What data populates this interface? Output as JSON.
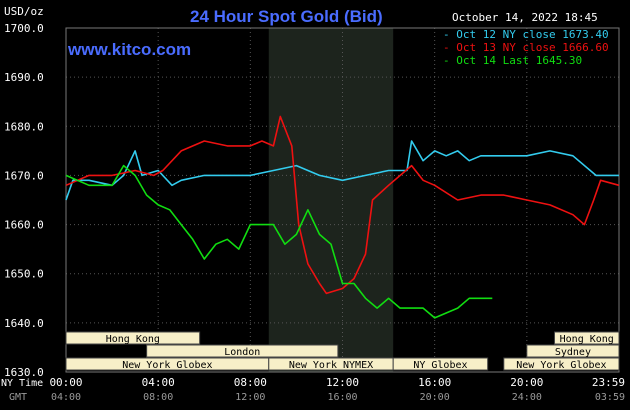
{
  "chart_data": {
    "type": "line",
    "title": "24 Hour Spot Gold (Bid)",
    "watermark": "www.kitco.com",
    "timestamp": "October 14, 2022 18:45",
    "yunit": "USD/oz",
    "ylim": [
      1630,
      1700
    ],
    "yticks": [
      "1700.0",
      "1690.0",
      "1680.0",
      "1670.0",
      "1660.0",
      "1650.0",
      "1640.0",
      "1630.0"
    ],
    "time_row_labels": [
      "NY Time",
      "GMT"
    ],
    "x_ny_ticks": [
      "00:00",
      "04:00",
      "08:00",
      "12:00",
      "16:00",
      "20:00",
      "23:59"
    ],
    "x_gmt_ticks": [
      "04:00",
      "08:00",
      "12:00",
      "16:00",
      "20:00",
      "24:00",
      "03:59"
    ],
    "legend": [
      {
        "label": "Oct 12 NY close 1673.40",
        "color": "#33ccee"
      },
      {
        "label": "Oct 13 NY close 1666.60",
        "color": "#ee1111"
      },
      {
        "label": "Oct 14 Last 1645.30",
        "color": "#11dd11"
      }
    ],
    "series": [
      {
        "name": "Oct 12 NY close 1673.40",
        "color": "#33ccee",
        "points": [
          [
            0,
            1665
          ],
          [
            0.3,
            1669
          ],
          [
            1,
            1669
          ],
          [
            2,
            1668
          ],
          [
            2.5,
            1670
          ],
          [
            3,
            1675
          ],
          [
            3.3,
            1670
          ],
          [
            4,
            1671
          ],
          [
            4.6,
            1668
          ],
          [
            5,
            1669
          ],
          [
            6,
            1670
          ],
          [
            7,
            1670
          ],
          [
            8,
            1670
          ],
          [
            9,
            1671
          ],
          [
            10,
            1672
          ],
          [
            11,
            1670
          ],
          [
            12,
            1669
          ],
          [
            13,
            1670
          ],
          [
            14,
            1671
          ],
          [
            14.8,
            1671
          ],
          [
            15,
            1677
          ],
          [
            15.5,
            1673
          ],
          [
            16,
            1675
          ],
          [
            16.5,
            1674
          ],
          [
            17,
            1675
          ],
          [
            17.5,
            1673
          ],
          [
            18,
            1674
          ],
          [
            19,
            1674
          ],
          [
            20,
            1674
          ],
          [
            21,
            1675
          ],
          [
            22,
            1674
          ],
          [
            23,
            1670
          ],
          [
            24,
            1670
          ]
        ]
      },
      {
        "name": "Oct 13 NY close 1666.60",
        "color": "#ee1111",
        "points": [
          [
            0,
            1668
          ],
          [
            1,
            1670
          ],
          [
            2,
            1670
          ],
          [
            3,
            1671
          ],
          [
            3.8,
            1670
          ],
          [
            4.2,
            1671
          ],
          [
            5,
            1675
          ],
          [
            6,
            1677
          ],
          [
            7,
            1676
          ],
          [
            8,
            1676
          ],
          [
            8.5,
            1677
          ],
          [
            9,
            1676
          ],
          [
            9.3,
            1682
          ],
          [
            9.8,
            1676
          ],
          [
            10.1,
            1660
          ],
          [
            10.5,
            1652
          ],
          [
            11,
            1648
          ],
          [
            11.3,
            1646
          ],
          [
            12,
            1647
          ],
          [
            12.5,
            1649
          ],
          [
            13,
            1654
          ],
          [
            13.3,
            1665
          ],
          [
            14,
            1668
          ],
          [
            15,
            1672
          ],
          [
            15.5,
            1669
          ],
          [
            16,
            1668
          ],
          [
            17,
            1665
          ],
          [
            18,
            1666
          ],
          [
            19,
            1666
          ],
          [
            20,
            1665
          ],
          [
            21,
            1664
          ],
          [
            22,
            1662
          ],
          [
            22.5,
            1660
          ],
          [
            22.9,
            1665
          ],
          [
            23.2,
            1669
          ],
          [
            24,
            1668
          ]
        ]
      },
      {
        "name": "Oct 14 Last 1645.30",
        "color": "#11dd11",
        "points": [
          [
            0,
            1670
          ],
          [
            1,
            1668
          ],
          [
            2,
            1668
          ],
          [
            2.5,
            1672
          ],
          [
            3,
            1670
          ],
          [
            3.5,
            1666
          ],
          [
            4,
            1664
          ],
          [
            4.5,
            1663
          ],
          [
            5,
            1660
          ],
          [
            5.5,
            1657
          ],
          [
            6,
            1653
          ],
          [
            6.5,
            1656
          ],
          [
            7,
            1657
          ],
          [
            7.5,
            1655
          ],
          [
            8,
            1660
          ],
          [
            9,
            1660
          ],
          [
            9.5,
            1656
          ],
          [
            10,
            1658
          ],
          [
            10.5,
            1663
          ],
          [
            11,
            1658
          ],
          [
            11.5,
            1656
          ],
          [
            12,
            1648
          ],
          [
            12.5,
            1648
          ],
          [
            13,
            1645
          ],
          [
            13.5,
            1643
          ],
          [
            14,
            1645
          ],
          [
            14.5,
            1643
          ],
          [
            15,
            1643
          ],
          [
            15.5,
            1643
          ],
          [
            16,
            1641
          ],
          [
            16.5,
            1642
          ],
          [
            17,
            1643
          ],
          [
            17.5,
            1645
          ],
          [
            18,
            1645
          ],
          [
            18.5,
            1645
          ]
        ]
      }
    ],
    "sessions": [
      {
        "label": "Hong Kong",
        "start": 0,
        "end": 5.8,
        "row": 0
      },
      {
        "label": "London",
        "start": 3.5,
        "end": 11.8,
        "row": 1
      },
      {
        "label": "New York Globex",
        "start": 0,
        "end": 8.8,
        "row": 2
      },
      {
        "label": "New York NYMEX",
        "start": 8.8,
        "end": 14.2,
        "row": 2
      },
      {
        "label": "NY Globex",
        "start": 14.2,
        "end": 18.3,
        "row": 2
      },
      {
        "label": "Hong Kong",
        "start": 21.2,
        "end": 24,
        "row": 0
      },
      {
        "label": "Sydney",
        "start": 20,
        "end": 24,
        "row": 1
      },
      {
        "label": "New York Globex",
        "start": 19,
        "end": 24,
        "row": 2
      }
    ],
    "highlight_range": [
      8.8,
      14.2
    ],
    "grid": true
  }
}
